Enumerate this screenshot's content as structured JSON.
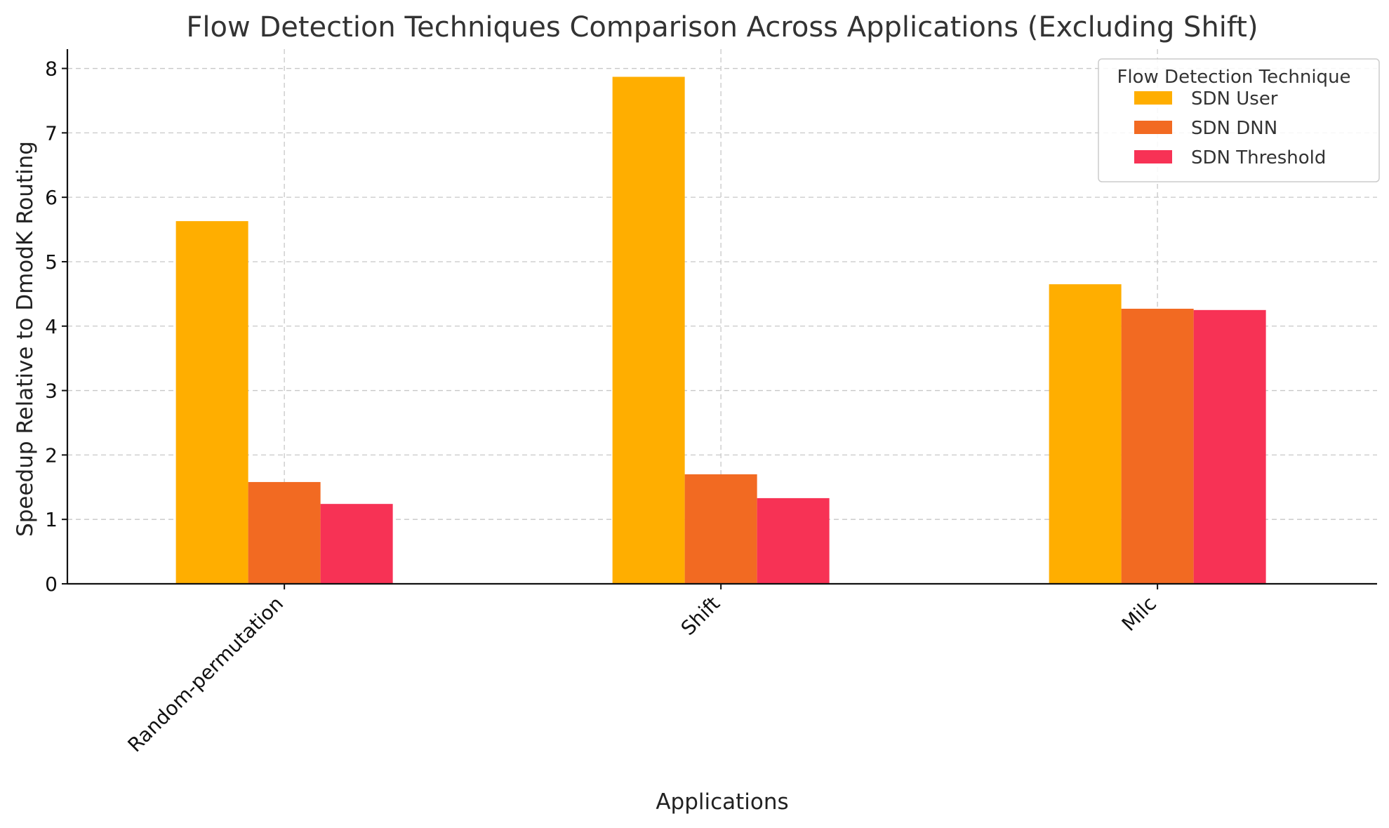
{
  "chart_data": {
    "type": "bar",
    "title": "Flow Detection Techniques Comparison Across Applications (Excluding Shift)",
    "xlabel": "Applications",
    "ylabel": "Speedup Relative to DmodK Routing",
    "categories": [
      "Random-permutation",
      "Shift",
      "Milc"
    ],
    "series": [
      {
        "name": "SDN User",
        "color": "#FFAE00",
        "values": [
          5.63,
          7.87,
          4.65
        ]
      },
      {
        "name": "SDN DNN",
        "color": "#F26A22",
        "values": [
          1.58,
          1.7,
          4.27
        ]
      },
      {
        "name": "SDN Threshold",
        "color": "#F73255",
        "values": [
          1.24,
          1.33,
          4.25
        ]
      }
    ],
    "ylim": [
      0,
      8.3
    ],
    "yticks": [
      0,
      1,
      2,
      3,
      4,
      5,
      6,
      7,
      8
    ],
    "grid": true,
    "legend": {
      "title": "Flow Detection Technique",
      "placement": "top-right"
    }
  }
}
